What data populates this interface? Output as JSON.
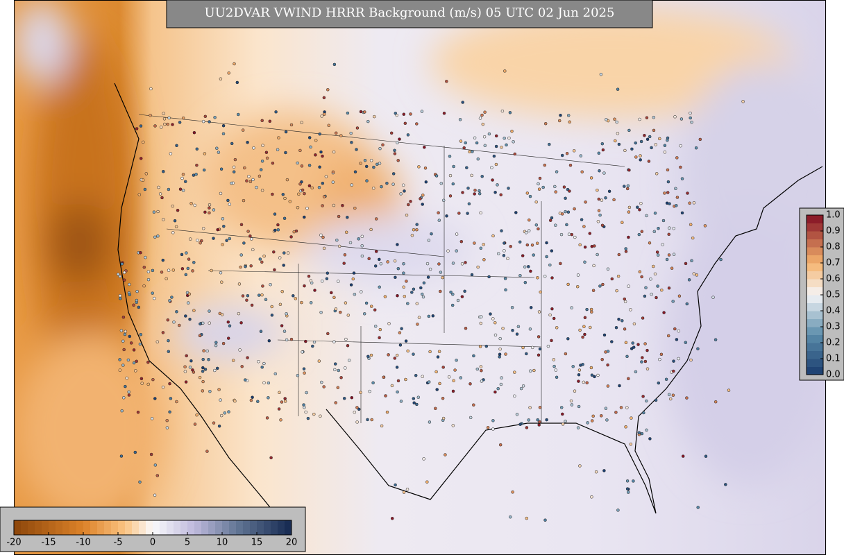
{
  "map": {
    "title": "UU2DVAR VWIND HRRR Background (m/s) 05 UTC 02 Jun 2025",
    "field_colorbar": {
      "lim": [
        -20,
        20
      ],
      "ticks": [
        -20,
        -15,
        -10,
        -5,
        0,
        5,
        10,
        15,
        20
      ]
    },
    "obs_colorbar": {
      "lim": [
        0,
        1
      ],
      "ticks": [
        {
          "value": 0,
          "label": "0.0"
        },
        {
          "value": 0.1,
          "label": "0.1"
        },
        {
          "value": 0.2,
          "label": "0.2"
        },
        {
          "value": 0.3,
          "label": "0.3"
        },
        {
          "value": 0.4,
          "label": "0.4"
        },
        {
          "value": 0.5,
          "label": "0.5"
        },
        {
          "value": 0.6,
          "label": "0.6"
        },
        {
          "value": 0.7,
          "label": "0.7"
        },
        {
          "value": 0.8,
          "label": "0.8"
        },
        {
          "value": 0.9,
          "label": "0.9"
        },
        {
          "value": 1,
          "label": "1.0"
        }
      ]
    }
  }
}
